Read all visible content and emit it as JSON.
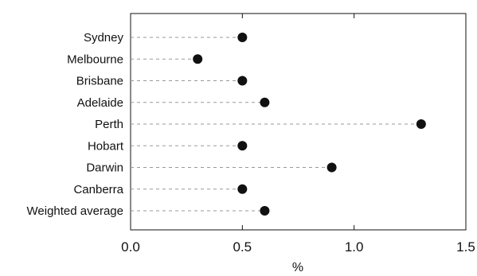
{
  "chart_data": {
    "type": "scatter",
    "orientation": "horizontal-dot",
    "categories": [
      "Sydney",
      "Melbourne",
      "Brisbane",
      "Adelaide",
      "Perth",
      "Hobart",
      "Darwin",
      "Canberra",
      "Weighted average"
    ],
    "values": [
      0.5,
      0.3,
      0.5,
      0.6,
      1.3,
      0.5,
      0.9,
      0.5,
      0.6
    ],
    "xlabel": "%",
    "ylabel": "",
    "xlim": [
      0,
      1.5
    ],
    "xticks": [
      0.0,
      0.5,
      1.0,
      1.5
    ],
    "xtick_labels": [
      "0.0",
      "0.5",
      "1.0",
      "1.5"
    ],
    "grid": false,
    "marker_color": "#111111",
    "leader_line_color": "#999999"
  }
}
